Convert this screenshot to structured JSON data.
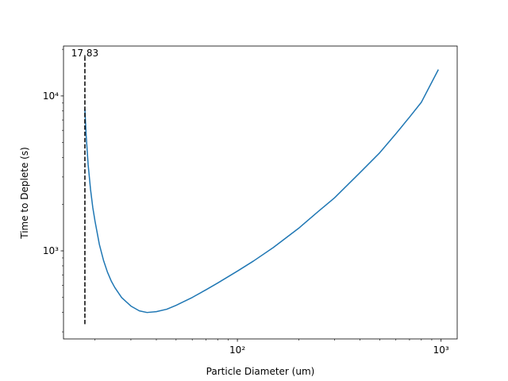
{
  "chart_data": {
    "type": "line",
    "title": "",
    "xlabel": "Particle Diameter (um)",
    "ylabel": "Time to Deplete (s)",
    "xscale": "log",
    "yscale": "log",
    "xlim": [
      14.0,
      1200
    ],
    "ylim": [
      270,
      21000
    ],
    "grid": false,
    "legend": "none",
    "x_tick_labels": [
      "10²",
      "10³"
    ],
    "y_tick_labels": [
      "10³",
      "10⁴"
    ],
    "series": [
      {
        "color": "#1f77b4",
        "x": [
          17.83,
          18.1,
          18.5,
          19,
          19.5,
          20,
          21,
          22,
          23,
          24,
          25,
          27,
          30,
          33,
          36,
          40,
          45,
          50,
          60,
          70,
          80,
          100,
          120,
          150,
          200,
          250,
          300,
          400,
          500,
          600,
          700,
          800,
          970
        ],
        "y": [
          8200,
          5500,
          3600,
          2500,
          1900,
          1550,
          1100,
          870,
          730,
          640,
          580,
          500,
          440,
          410,
          400,
          405,
          420,
          445,
          500,
          560,
          620,
          740,
          860,
          1050,
          1400,
          1800,
          2200,
          3200,
          4300,
          5700,
          7300,
          9100,
          14800
        ]
      }
    ],
    "vline": {
      "x": 17.83,
      "label": "17.83",
      "color": "#000000",
      "y_range": [
        330,
        18000
      ]
    }
  }
}
